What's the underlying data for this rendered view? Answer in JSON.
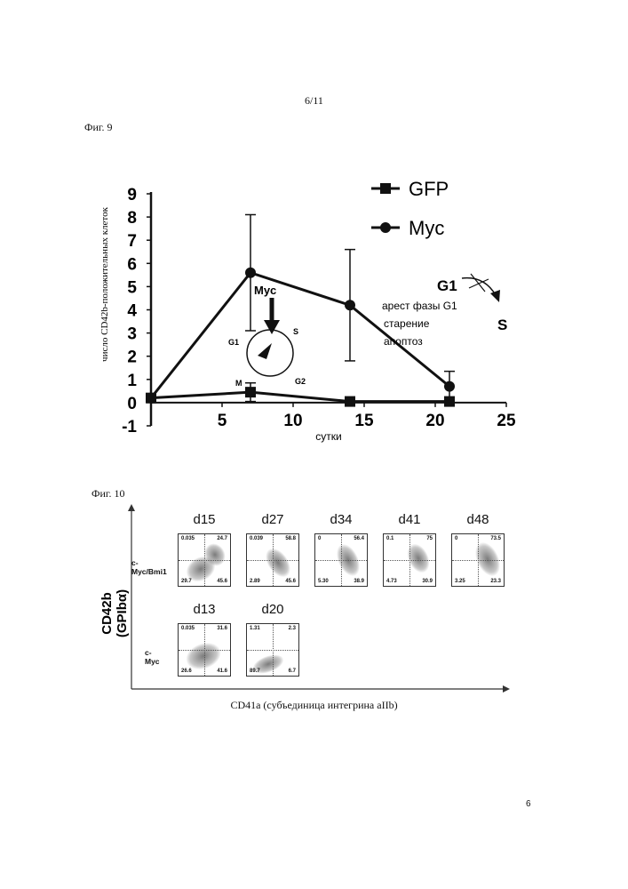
{
  "page_number": "6/11",
  "footer_number": "6",
  "fig9": {
    "label": "Фиг. 9",
    "chart_data": {
      "type": "line",
      "ylabel": "число CD42b-положительных клеток",
      "xlabel": "сутки",
      "x_ticks": [
        "5",
        "10",
        "15",
        "20",
        "25"
      ],
      "y_ticks": [
        "9",
        "8",
        "7",
        "6",
        "5",
        "4",
        "3",
        "2",
        "1",
        "0",
        "-1"
      ],
      "xlim": [
        0,
        25
      ],
      "ylim": [
        -1,
        9
      ],
      "series": [
        {
          "name": "GFP",
          "marker": "square",
          "x": [
            0,
            7,
            14,
            21
          ],
          "y": [
            0.2,
            0.45,
            0.05,
            0.05
          ],
          "err": [
            0,
            0.4,
            0,
            0
          ]
        },
        {
          "name": "Myc",
          "marker": "circle",
          "x": [
            0,
            7,
            14,
            21
          ],
          "y": [
            0.2,
            5.6,
            4.2,
            0.7
          ],
          "err": [
            0,
            2.5,
            2.4,
            0.65
          ]
        }
      ]
    },
    "inset": {
      "myc": "Myc",
      "g1": "G1",
      "s": "S",
      "m": "M",
      "g2": "G2"
    },
    "side_note": {
      "g1": "G1",
      "s": "S",
      "lines": [
        "арест фазы G1",
        "старение",
        "апоптоз"
      ]
    }
  },
  "fig10": {
    "label": "Фиг. 10",
    "ylabel_line1": "CD42b",
    "ylabel_line2": "(GPIbα)",
    "xlabel": "CD41a (субъединица интегрина aIIb)",
    "rows": [
      {
        "label": "c-Myc/Bmi1",
        "panels": [
          {
            "day": "d15",
            "ul": "0.035",
            "ur": "24.7",
            "ll": "29.7",
            "lr": "45.6"
          },
          {
            "day": "d27",
            "ul": "0.039",
            "ur": "58.8",
            "ll": "2.89",
            "lr": "45.6"
          },
          {
            "day": "d34",
            "ul": "0",
            "ur": "56.4",
            "ll": "5.30",
            "lr": "38.9"
          },
          {
            "day": "d41",
            "ul": "0.1",
            "ur": "75",
            "ll": "4.73",
            "lr": "30.9"
          },
          {
            "day": "d48",
            "ul": "0",
            "ur": "73.5",
            "ll": "3.25",
            "lr": "23.3"
          }
        ]
      },
      {
        "label": "c-Myc",
        "panels": [
          {
            "day": "d13",
            "ul": "0.035",
            "ur": "31.6",
            "ll": "26.6",
            "lr": "41.6"
          },
          {
            "day": "d20",
            "ul": "1.31",
            "ur": "2.3",
            "ll": "89.7",
            "lr": "6.7"
          }
        ]
      }
    ]
  }
}
